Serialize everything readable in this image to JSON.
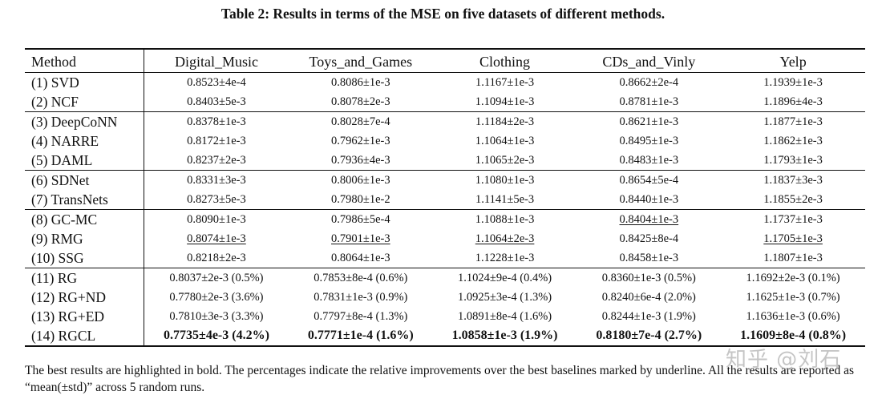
{
  "caption": "Table 2: Results in terms of the MSE on five datasets of different methods.",
  "columns": [
    "Method",
    "Digital_Music",
    "Toys_and_Games",
    "Clothing",
    "CDs_and_Vinly",
    "Yelp"
  ],
  "rows": [
    {
      "method": "(1) SVD",
      "cells": [
        "0.8523±4e-4",
        "0.8086±1e-3",
        "1.1167±1e-3",
        "0.8662±2e-4",
        "1.1939±1e-3"
      ]
    },
    {
      "method": "(2) NCF",
      "cells": [
        "0.8403±5e-3",
        "0.8078±2e-3",
        "1.1094±1e-3",
        "0.8781±1e-3",
        "1.1896±4e-3"
      ]
    },
    {
      "method": "(3) DeepCoNN",
      "cells": [
        "0.8378±1e-3",
        "0.8028±7e-4",
        "1.1184±2e-3",
        "0.8621±1e-3",
        "1.1877±1e-3"
      ]
    },
    {
      "method": "(4) NARRE",
      "cells": [
        "0.8172±1e-3",
        "0.7962±1e-3",
        "1.1064±1e-3",
        "0.8495±1e-3",
        "1.1862±1e-3"
      ]
    },
    {
      "method": "(5) DAML",
      "cells": [
        "0.8237±2e-3",
        "0.7936±4e-3",
        "1.1065±2e-3",
        "0.8483±1e-3",
        "1.1793±1e-3"
      ]
    },
    {
      "method": "(6) SDNet",
      "cells": [
        "0.8331±3e-3",
        "0.8006±1e-3",
        "1.1080±1e-3",
        "0.8654±5e-4",
        "1.1837±3e-3"
      ]
    },
    {
      "method": "(7) TransNets",
      "cells": [
        "0.8273±5e-3",
        "0.7980±1e-2",
        "1.1141±5e-3",
        "0.8440±1e-3",
        "1.1855±2e-3"
      ]
    },
    {
      "method": "(8) GC-MC",
      "cells": [
        "0.8090±1e-3",
        "0.7986±5e-4",
        "1.1088±1e-3",
        "0.8404±1e-3",
        "1.1737±1e-3"
      ]
    },
    {
      "method": "(9) RMG",
      "cells": [
        "0.8074±1e-3",
        "0.7901±1e-3",
        "1.1064±2e-3",
        "0.8425±8e-4",
        "1.1705±1e-3"
      ]
    },
    {
      "method": "(10) SSG",
      "cells": [
        "0.8218±2e-3",
        "0.8064±1e-3",
        "1.1228±1e-3",
        "0.8458±1e-3",
        "1.1807±1e-3"
      ]
    },
    {
      "method": "(11) RG",
      "cells": [
        "0.8037±2e-3 (0.5%)",
        "0.7853±8e-4 (0.6%)",
        "1.1024±9e-4 (0.4%)",
        "0.8360±1e-3 (0.5%)",
        "1.1692±2e-3 (0.1%)"
      ]
    },
    {
      "method": "(12) RG+ND",
      "cells": [
        "0.7780±2e-3 (3.6%)",
        "0.7831±1e-3 (0.9%)",
        "1.0925±3e-4 (1.3%)",
        "0.8240±6e-4 (2.0%)",
        "1.1625±1e-3 (0.7%)"
      ]
    },
    {
      "method": "(13) RG+ED",
      "cells": [
        "0.7810±3e-3 (3.3%)",
        "0.7797±8e-4 (1.3%)",
        "1.0891±8e-4 (1.6%)",
        "0.8244±1e-3 (1.9%)",
        "1.1636±1e-3 (0.6%)"
      ]
    },
    {
      "method": "(14) RGCL",
      "cells": [
        "0.7735±4e-3 (4.2%)",
        "0.7771±1e-4 (1.6%)",
        "1.0858±1e-3 (1.9%)",
        "0.8180±7e-4 (2.7%)",
        "1.1609±8e-4 (0.8%)"
      ]
    }
  ],
  "footnote": "The best results are highlighted in bold. The percentages indicate the relative improvements over the best baselines marked by underline. All the results are reported as “mean(±std)” across 5 random runs.",
  "watermark": "知乎 @刘石"
}
